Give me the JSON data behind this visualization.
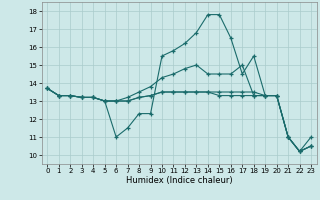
{
  "xlabel": "Humidex (Indice chaleur)",
  "background_color": "#cde8e8",
  "grid_color": "#aacccc",
  "line_color": "#1a6b6b",
  "xlim": [
    -0.5,
    23.5
  ],
  "ylim": [
    9.5,
    18.5
  ],
  "xticks": [
    0,
    1,
    2,
    3,
    4,
    5,
    6,
    7,
    8,
    9,
    10,
    11,
    12,
    13,
    14,
    15,
    16,
    17,
    18,
    19,
    20,
    21,
    22,
    23
  ],
  "yticks": [
    10,
    11,
    12,
    13,
    14,
    15,
    16,
    17,
    18
  ],
  "lines": [
    [
      13.7,
      13.3,
      13.3,
      13.2,
      13.2,
      13.0,
      11.0,
      11.5,
      12.3,
      12.3,
      15.5,
      15.8,
      16.2,
      16.8,
      17.8,
      17.8,
      16.5,
      14.5,
      15.5,
      13.3,
      13.3,
      11.0,
      10.2,
      11.0
    ],
    [
      13.7,
      13.3,
      13.3,
      13.2,
      13.2,
      13.0,
      13.0,
      13.2,
      13.5,
      13.8,
      14.3,
      14.5,
      14.8,
      15.0,
      14.5,
      14.5,
      14.5,
      15.0,
      13.3,
      13.3,
      13.3,
      11.0,
      10.2,
      10.5
    ],
    [
      13.7,
      13.3,
      13.3,
      13.2,
      13.2,
      13.0,
      13.0,
      13.0,
      13.2,
      13.3,
      13.5,
      13.5,
      13.5,
      13.5,
      13.5,
      13.5,
      13.5,
      13.5,
      13.5,
      13.3,
      13.3,
      11.0,
      10.2,
      10.5
    ],
    [
      13.7,
      13.3,
      13.3,
      13.2,
      13.2,
      13.0,
      13.0,
      13.0,
      13.2,
      13.3,
      13.5,
      13.5,
      13.5,
      13.5,
      13.5,
      13.3,
      13.3,
      13.3,
      13.3,
      13.3,
      13.3,
      11.0,
      10.2,
      10.5
    ]
  ]
}
